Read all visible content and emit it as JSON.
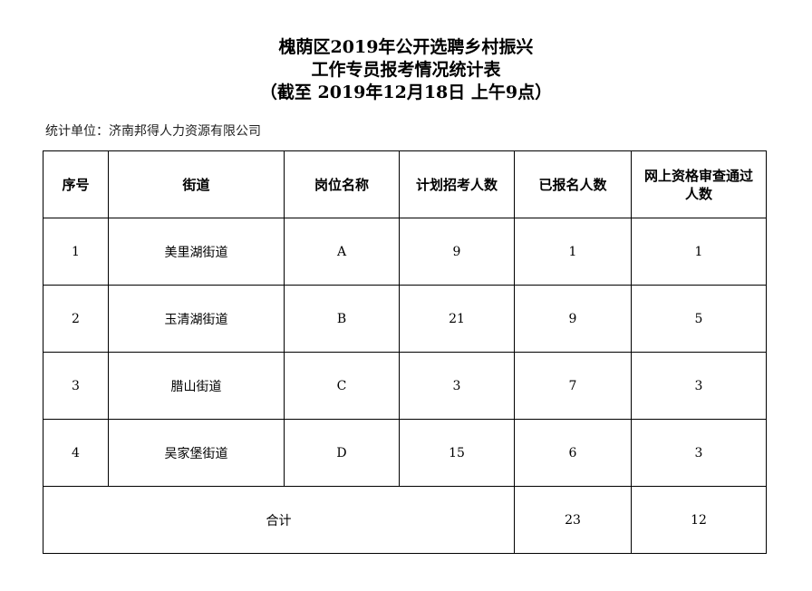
{
  "title": {
    "line1": "槐荫区2019年公开选聘乡村振兴",
    "line2": "工作专员报考情况统计表",
    "line3": "（截至 2019年12月18日 上午9点）"
  },
  "unit": "统计单位：济南邦得人力资源有限公司",
  "table": {
    "headers": [
      "序号",
      "街道",
      "岗位名称",
      "计划招考人数",
      "已报名人数",
      "网上资格审查通过人数"
    ],
    "rows": [
      [
        "1",
        "美里湖街道",
        "A",
        "9",
        "1",
        "1"
      ],
      [
        "2",
        "玉清湖街道",
        "B",
        "21",
        "9",
        "5"
      ],
      [
        "3",
        "腊山街道",
        "C",
        "3",
        "7",
        "3"
      ],
      [
        "4",
        "吴家堡街道",
        "D",
        "15",
        "6",
        "3"
      ]
    ],
    "total": {
      "label": "合计",
      "registered": "23",
      "passed": "12"
    }
  }
}
